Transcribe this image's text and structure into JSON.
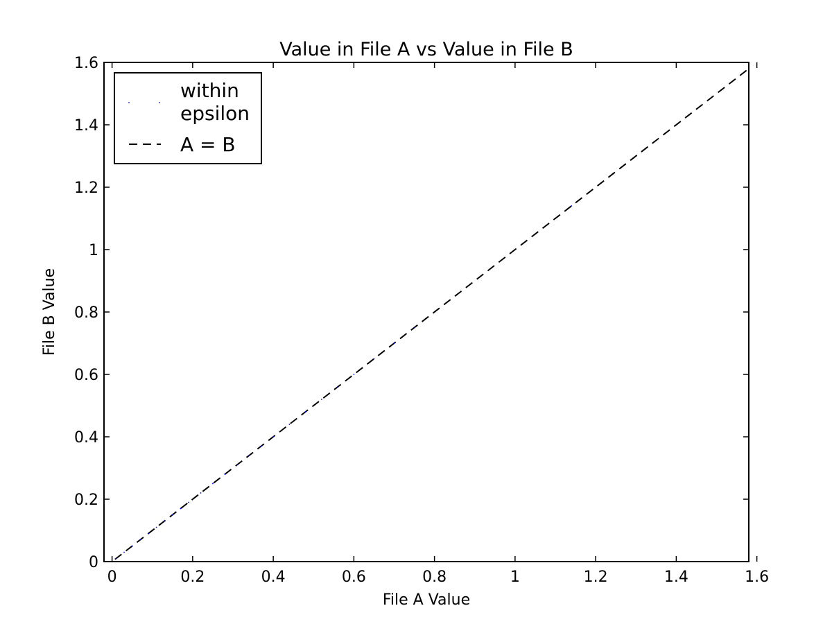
{
  "chart_data": {
    "type": "scatter",
    "title": "Value in File A vs Value in File B",
    "xlabel": "File A Value",
    "ylabel": "File B Value",
    "xlim": [
      -0.02,
      1.58
    ],
    "ylim": [
      0,
      1.6
    ],
    "xticks": [
      0,
      0.2,
      0.4,
      0.6,
      0.8,
      1,
      1.2,
      1.4,
      1.6
    ],
    "xtick_labels": [
      "0",
      "0.2",
      "0.4",
      "0.6",
      "0.8",
      "1",
      "1.2",
      "1.4",
      "1.6"
    ],
    "yticks": [
      0,
      0.2,
      0.4,
      0.6,
      0.8,
      1,
      1.2,
      1.4,
      1.6
    ],
    "ytick_labels": [
      "0",
      "0.2",
      "0.4",
      "0.6",
      "0.8",
      "1",
      "1.2",
      "1.4",
      "1.6"
    ],
    "grid": false,
    "legend": {
      "placement": "top-left",
      "entries": [
        {
          "label_line1": "within",
          "label_line2": "epsilon",
          "style": "points",
          "color": "#0000ff"
        },
        {
          "label": "A = B",
          "style": "dashed-line",
          "color": "#000000"
        }
      ]
    },
    "series": [
      {
        "name": "within epsilon",
        "style": "points",
        "color": "#0000ff",
        "x": [
          0.01,
          0.03,
          0.05,
          0.07,
          0.09,
          0.11,
          0.13,
          0.15,
          0.17,
          0.19,
          0.22,
          0.25,
          0.28,
          0.31,
          0.34,
          0.37,
          0.4,
          0.44,
          0.48,
          0.52,
          0.56,
          0.6,
          0.65,
          0.7,
          0.75,
          1.14
        ],
        "y": [
          0.01,
          0.03,
          0.05,
          0.07,
          0.09,
          0.11,
          0.13,
          0.15,
          0.17,
          0.19,
          0.22,
          0.25,
          0.28,
          0.31,
          0.34,
          0.37,
          0.4,
          0.44,
          0.48,
          0.52,
          0.56,
          0.6,
          0.65,
          0.7,
          0.75,
          1.14
        ]
      },
      {
        "name": "A = B",
        "style": "dashed-line",
        "color": "#000000",
        "x": [
          -0.02,
          1.58
        ],
        "y": [
          -0.02,
          1.58
        ]
      }
    ]
  }
}
